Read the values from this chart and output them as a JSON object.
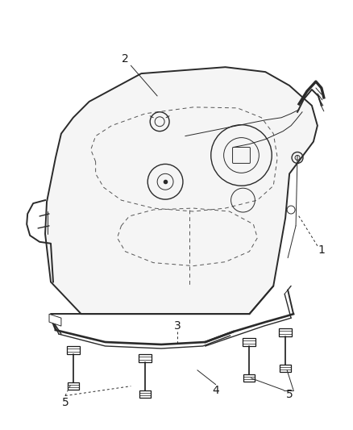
{
  "background_color": "#ffffff",
  "line_color": "#2a2a2a",
  "label_color": "#1a1a1a",
  "fig_width": 4.38,
  "fig_height": 5.33,
  "dpi": 100
}
